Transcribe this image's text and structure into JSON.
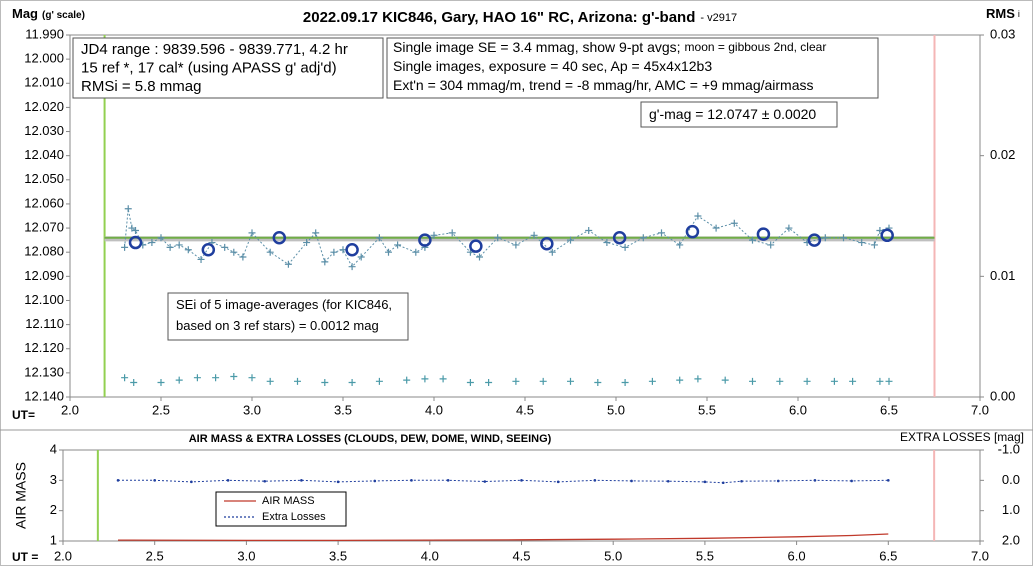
{
  "chart_data": [
    {
      "type": "scatter",
      "title": "2022.09.17 KIC846, Gary, HAO 16\" RC, Arizona: g'-band",
      "subtitle": "- v2917",
      "ylabel": "Mag",
      "ylabel_note": "(g' scale)",
      "y2label": "RMS",
      "y2label_sub": "i",
      "xlabel": "UT=",
      "xlim": [
        2.0,
        7.0
      ],
      "xticks": [
        {
          "value": 2.0,
          "label": "2.0"
        },
        {
          "value": 2.5,
          "label": "2.5"
        },
        {
          "value": 3.0,
          "label": "3.0"
        },
        {
          "value": 3.5,
          "label": "3.5"
        },
        {
          "value": 4.0,
          "label": "4.0"
        },
        {
          "value": 4.5,
          "label": "4.5"
        },
        {
          "value": 5.0,
          "label": "5.0"
        },
        {
          "value": 5.5,
          "label": "5.5"
        },
        {
          "value": 6.0,
          "label": "6.0"
        },
        {
          "value": 6.5,
          "label": "6.5"
        },
        {
          "value": 7.0,
          "label": "7.0"
        }
      ],
      "ylim": [
        11.99,
        12.14
      ],
      "y_inverted": true,
      "yticks": [
        {
          "value": 11.99,
          "label": "11.990"
        },
        {
          "value": 12.0,
          "label": "12.000"
        },
        {
          "value": 12.01,
          "label": "12.010"
        },
        {
          "value": 12.02,
          "label": "12.020"
        },
        {
          "value": 12.03,
          "label": "12.030"
        },
        {
          "value": 12.04,
          "label": "12.040"
        },
        {
          "value": 12.05,
          "label": "12.050"
        },
        {
          "value": 12.06,
          "label": "12.060"
        },
        {
          "value": 12.07,
          "label": "12.070"
        },
        {
          "value": 12.08,
          "label": "12.080"
        },
        {
          "value": 12.09,
          "label": "12.090"
        },
        {
          "value": 12.1,
          "label": "12.100"
        },
        {
          "value": 12.11,
          "label": "12.110"
        },
        {
          "value": 12.12,
          "label": "12.120"
        },
        {
          "value": 12.13,
          "label": "12.130"
        },
        {
          "value": 12.14,
          "label": "12.140"
        }
      ],
      "y2lim": [
        0,
        0.03
      ],
      "y2ticks": [
        {
          "value": 0,
          "label": "0.00"
        },
        {
          "value": 0.01,
          "label": "0.01"
        },
        {
          "value": 0.02,
          "label": "0.02"
        },
        {
          "value": 0.03,
          "label": "0.03"
        }
      ],
      "grid": false,
      "vlines": [
        {
          "x": 2.19,
          "color": "#92d050"
        },
        {
          "x": 6.75,
          "color": "#f4b6b6"
        }
      ],
      "hlines": [
        {
          "y": 12.0745,
          "color": "#bfbfbf"
        },
        {
          "y": 12.074,
          "color": "#70ad47"
        }
      ],
      "annotations": [
        {
          "lines": [
            "JD4 range : 9839.596 - 9839.771,  4.2 hr",
            "15 ref *, 17 cal* (using APASS g' adj'd)",
            "RMSi = 5.8 mmag"
          ]
        },
        {
          "lines": [
            "Single image SE = 3.4 mmag, show  9-pt avgs;",
            "Single images, exposure = 40 sec, Ap = 45x4x12b3",
            "Ext'n = 304 mmag/m, trend = -8 mmag/hr, AMC = +9 mmag/airmass"
          ],
          "small": "moon = gibbous 2nd, clear"
        },
        {
          "lines": [
            "g'-mag = 12.0747 ± 0.0020"
          ]
        },
        {
          "lines": [
            "SEi of 5 image-averages (for KIC846,",
            "based on 3 ref stars) = 0.0012 mag"
          ]
        }
      ],
      "series": [
        {
          "color": "#5b8fa8",
          "marker": "plus",
          "line": "dotted",
          "x": [
            2.3,
            2.32,
            2.34,
            2.36,
            2.4,
            2.45,
            2.5,
            2.55,
            2.6,
            2.65,
            2.72,
            2.78,
            2.85,
            2.9,
            2.95,
            3.0,
            3.1,
            3.2,
            3.3,
            3.35,
            3.4,
            3.45,
            3.5,
            3.55,
            3.6,
            3.7,
            3.75,
            3.8,
            3.9,
            3.95,
            4.0,
            4.1,
            4.2,
            4.25,
            4.35,
            4.45,
            4.55,
            4.65,
            4.75,
            4.85,
            4.95,
            5.05,
            5.15,
            5.25,
            5.35,
            5.45,
            5.55,
            5.65,
            5.75,
            5.85,
            5.95,
            6.05,
            6.15,
            6.25,
            6.35,
            6.42,
            6.45,
            6.5
          ],
          "values": [
            12.078,
            12.062,
            12.07,
            12.071,
            12.077,
            12.076,
            12.074,
            12.078,
            12.077,
            12.079,
            12.083,
            12.076,
            12.078,
            12.08,
            12.082,
            12.072,
            12.08,
            12.085,
            12.076,
            12.072,
            12.084,
            12.08,
            12.079,
            12.086,
            12.082,
            12.074,
            12.08,
            12.077,
            12.08,
            12.078,
            12.073,
            12.072,
            12.08,
            12.082,
            12.074,
            12.077,
            12.073,
            12.08,
            12.075,
            12.071,
            12.076,
            12.078,
            12.074,
            12.072,
            12.077,
            12.065,
            12.07,
            12.068,
            12.075,
            12.077,
            12.07,
            12.076,
            12.074,
            12.074,
            12.076,
            12.077,
            12.071,
            12.07
          ]
        },
        {
          "color": "#1f3e9e",
          "marker": "circle",
          "line": null,
          "x": [
            2.36,
            2.76,
            3.15,
            3.55,
            3.95,
            4.23,
            4.62,
            5.02,
            5.42,
            5.81,
            6.09,
            6.49
          ],
          "values": [
            12.076,
            12.079,
            12.074,
            12.079,
            12.075,
            12.0775,
            12.0765,
            12.074,
            12.0715,
            12.0725,
            12.075,
            12.073
          ]
        },
        {
          "color": "#4a9aa8",
          "marker": "plus",
          "line": null,
          "axis": "y2",
          "x": [
            2.3,
            2.35,
            2.5,
            2.6,
            2.7,
            2.8,
            2.9,
            3.0,
            3.1,
            3.25,
            3.4,
            3.55,
            3.7,
            3.85,
            3.95,
            4.05,
            4.2,
            4.3,
            4.45,
            4.6,
            4.75,
            4.9,
            5.05,
            5.2,
            5.35,
            5.45,
            5.6,
            5.75,
            5.9,
            6.05,
            6.2,
            6.3,
            6.45,
            6.5
          ],
          "values": [
            0.0016,
            0.0012,
            0.0012,
            0.0014,
            0.0016,
            0.0016,
            0.0017,
            0.0016,
            0.0013,
            0.0013,
            0.0012,
            0.0012,
            0.0013,
            0.0014,
            0.0015,
            0.0015,
            0.0012,
            0.0012,
            0.0013,
            0.0013,
            0.0013,
            0.0012,
            0.0012,
            0.0013,
            0.0014,
            0.0015,
            0.0014,
            0.0013,
            0.0013,
            0.0013,
            0.0013,
            0.0013,
            0.0013,
            0.0013
          ]
        }
      ]
    },
    {
      "type": "line",
      "title": "AIR MASS & EXTRA LOSSES (CLOUDS, DEW, DOME, WIND, SEEING)",
      "ylabel": "AIR MASS",
      "y2label": "EXTRA LOSSES [mag]",
      "xlabel": "UT =",
      "xlim": [
        2.0,
        7.0
      ],
      "xticks": [
        {
          "value": 2.0,
          "label": "2.0"
        },
        {
          "value": 2.5,
          "label": "2.5"
        },
        {
          "value": 3.0,
          "label": "3.0"
        },
        {
          "value": 3.5,
          "label": "3.5"
        },
        {
          "value": 4.0,
          "label": "4.0"
        },
        {
          "value": 4.5,
          "label": "4.5"
        },
        {
          "value": 5.0,
          "label": "5.0"
        },
        {
          "value": 5.5,
          "label": "5.5"
        },
        {
          "value": 6.0,
          "label": "6.0"
        },
        {
          "value": 6.5,
          "label": "6.5"
        },
        {
          "value": 7.0,
          "label": "7.0"
        }
      ],
      "ylim": [
        1,
        4
      ],
      "yticks": [
        1,
        2,
        3,
        4
      ],
      "y2lim": [
        -1.0,
        2.0
      ],
      "y2_inverted": true,
      "y2ticks": [
        {
          "value": -1.0,
          "label": "-1.0"
        },
        {
          "value": 0.0,
          "label": "0.0"
        },
        {
          "value": 1.0,
          "label": "1.0"
        },
        {
          "value": 2.0,
          "label": "2.0"
        }
      ],
      "vlines": [
        {
          "x": 2.19,
          "color": "#92d050"
        },
        {
          "x": 6.75,
          "color": "#f4b6b6"
        }
      ],
      "series": [
        {
          "name": "AIR MASS",
          "color": "#c0392b",
          "marker": null,
          "line": "solid",
          "x": [
            2.3,
            3.0,
            3.5,
            4.0,
            4.5,
            5.0,
            5.5,
            6.0,
            6.3,
            6.5
          ],
          "values": [
            1.03,
            1.02,
            1.02,
            1.03,
            1.04,
            1.06,
            1.09,
            1.14,
            1.18,
            1.23
          ]
        },
        {
          "name": "Extra Losses",
          "color": "#1f3e9e",
          "marker": "dot",
          "line": "dotted",
          "axis": "y2",
          "x": [
            2.3,
            2.5,
            2.7,
            2.9,
            3.1,
            3.3,
            3.5,
            3.7,
            3.9,
            4.1,
            4.3,
            4.5,
            4.7,
            4.9,
            5.1,
            5.3,
            5.5,
            5.6,
            5.7,
            5.9,
            6.1,
            6.3,
            6.5
          ],
          "values": [
            0.0,
            0.0,
            0.05,
            0.0,
            0.03,
            0.0,
            0.05,
            0.02,
            0.0,
            0.0,
            0.04,
            0.0,
            0.05,
            0.0,
            0.02,
            0.03,
            0.05,
            0.08,
            0.03,
            0.02,
            0.0,
            0.02,
            0.0
          ]
        }
      ]
    }
  ]
}
